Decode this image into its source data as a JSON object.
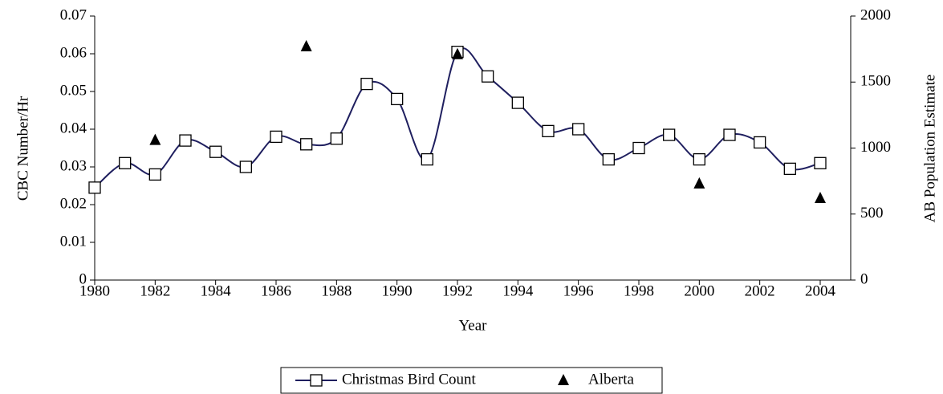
{
  "chart_data": {
    "type": "line",
    "x_label": "Year",
    "y_label": "CBC Number/Hr",
    "y2_label": "AB Population Estimate",
    "x": [
      1980,
      1981,
      1982,
      1983,
      1984,
      1985,
      1986,
      1987,
      1988,
      1989,
      1990,
      1991,
      1992,
      1993,
      1994,
      1995,
      1996,
      1997,
      1998,
      1999,
      2000,
      2001,
      2002,
      2003,
      2004
    ],
    "series": [
      {
        "name": "Christmas Bird Count",
        "color": "#1f1f5f",
        "type": "line",
        "x": [
          1980,
          1981,
          1982,
          1983,
          1984,
          1985,
          1986,
          1987,
          1988,
          1989,
          1990,
          1991,
          1992,
          1993,
          1994,
          1995,
          1996,
          1997,
          1998,
          1999,
          2000,
          2001,
          2002,
          2003,
          2004
        ],
        "values": [
          0.0245,
          0.031,
          0.028,
          0.037,
          0.034,
          0.03,
          0.038,
          0.036,
          0.0375,
          0.052,
          0.048,
          0.032,
          0.0605,
          0.054,
          0.047,
          0.0395,
          0.04,
          0.032,
          0.035,
          0.0385,
          0.032,
          0.0385,
          0.0365,
          0.0295,
          0.031
        ]
      },
      {
        "name": "Alberta",
        "color": "#000000",
        "type": "scatter",
        "axis": "y2",
        "x": [
          1982,
          1987,
          1992,
          2000,
          2004
        ],
        "values": [
          1060,
          1770,
          1710,
          730,
          620
        ]
      }
    ],
    "xlim": [
      1980,
      2005
    ],
    "xticks": [
      1980,
      1982,
      1984,
      1986,
      1988,
      1990,
      1992,
      1994,
      1996,
      1998,
      2000,
      2002,
      2004
    ],
    "ylim": [
      0,
      0.07
    ],
    "yticks": [
      0,
      0.01,
      0.02,
      0.03,
      0.04,
      0.05,
      0.06,
      0.07
    ],
    "y2lim": [
      0,
      2000
    ],
    "y2ticks": [
      0,
      500,
      1000,
      1500,
      2000
    ],
    "legend": "bottom"
  }
}
